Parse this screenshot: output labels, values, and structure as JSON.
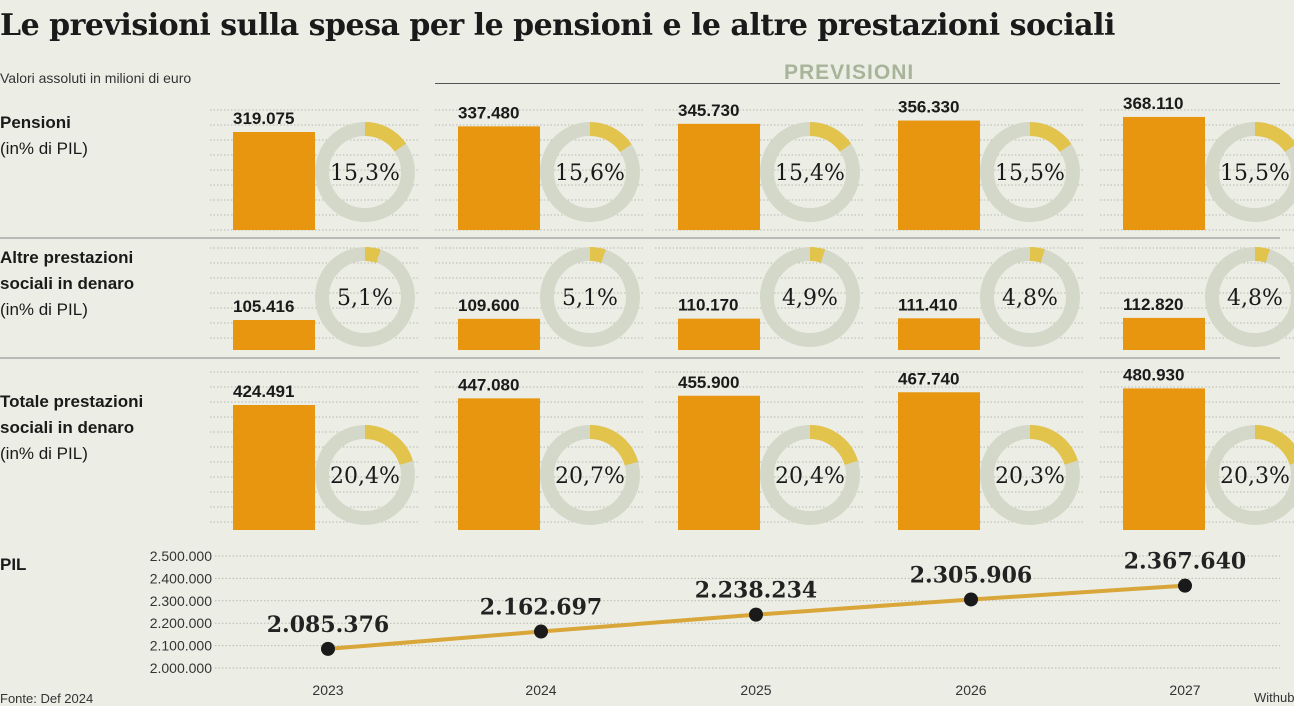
{
  "title": "Le previsioni sulla spesa per le pensioni e le altre prestazioni sociali",
  "subtitle": "Valori assoluti in milioni di euro",
  "forecast_label": "PREVISIONI",
  "source": "Fonte: Def 2024",
  "credit": "Withub",
  "colors": {
    "bar": "#e8960f",
    "ring": "#d4d8c9",
    "segment": "#e2c34c",
    "line": "#d9a63a",
    "point": "#1a1a1a"
  },
  "rows": [
    {
      "label_bold": "Pensioni",
      "label_rest": "(in% di PIL)"
    },
    {
      "label_bold": "Altre prestazioni sociali in denaro",
      "label_rest": "(in% di PIL)"
    },
    {
      "label_bold": "Totale prestazioni sociali in denaro",
      "label_rest": "(in% di PIL)"
    },
    {
      "label_bold": "PIL",
      "label_rest": ""
    }
  ],
  "chart_data": [
    {
      "type": "bar",
      "title": "Pensioni",
      "categories": [
        "2023",
        "2024",
        "2025",
        "2026",
        "2027"
      ],
      "values": [
        319075,
        337480,
        345730,
        356330,
        368110
      ],
      "labels": [
        "319.075",
        "337.480",
        "345.730",
        "356.330",
        "368.110"
      ],
      "pct_of_gdp": [
        15.3,
        15.6,
        15.4,
        15.5,
        15.5
      ],
      "pct_labels": [
        "15,3%",
        "15,6%",
        "15,4%",
        "15,5%",
        "15,5%"
      ]
    },
    {
      "type": "bar",
      "title": "Altre prestazioni sociali in denaro",
      "categories": [
        "2023",
        "2024",
        "2025",
        "2026",
        "2027"
      ],
      "values": [
        105416,
        109600,
        110170,
        111410,
        112820
      ],
      "labels": [
        "105.416",
        "109.600",
        "110.170",
        "111.410",
        "112.820"
      ],
      "pct_of_gdp": [
        5.1,
        5.1,
        4.9,
        4.8,
        4.8
      ],
      "pct_labels": [
        "5,1%",
        "5,1%",
        "4,9%",
        "4,8%",
        "4,8%"
      ]
    },
    {
      "type": "bar",
      "title": "Totale prestazioni sociali in denaro",
      "categories": [
        "2023",
        "2024",
        "2025",
        "2026",
        "2027"
      ],
      "values": [
        424491,
        447080,
        455900,
        467740,
        480930
      ],
      "labels": [
        "424.491",
        "447.080",
        "455.900",
        "467.740",
        "480.930"
      ],
      "pct_of_gdp": [
        20.4,
        20.7,
        20.4,
        20.3,
        20.3
      ],
      "pct_labels": [
        "20,4%",
        "20,7%",
        "20,4%",
        "20,3%",
        "20,3%"
      ]
    },
    {
      "type": "line",
      "title": "PIL",
      "x": [
        "2023",
        "2024",
        "2025",
        "2026",
        "2027"
      ],
      "values": [
        2085376,
        2162697,
        2238234,
        2305906,
        2367640
      ],
      "labels": [
        "2.085.376",
        "2.162.697",
        "2.238.234",
        "2.305.906",
        "2.367.640"
      ],
      "ylim": [
        2000000,
        2500000
      ],
      "yticks": [
        2000000,
        2100000,
        2200000,
        2300000,
        2400000,
        2500000
      ],
      "ytick_labels": [
        "2.000.000",
        "2.100.000",
        "2.200.000",
        "2.300.000",
        "2.400.000",
        "2.500.000"
      ],
      "grid": true
    }
  ]
}
